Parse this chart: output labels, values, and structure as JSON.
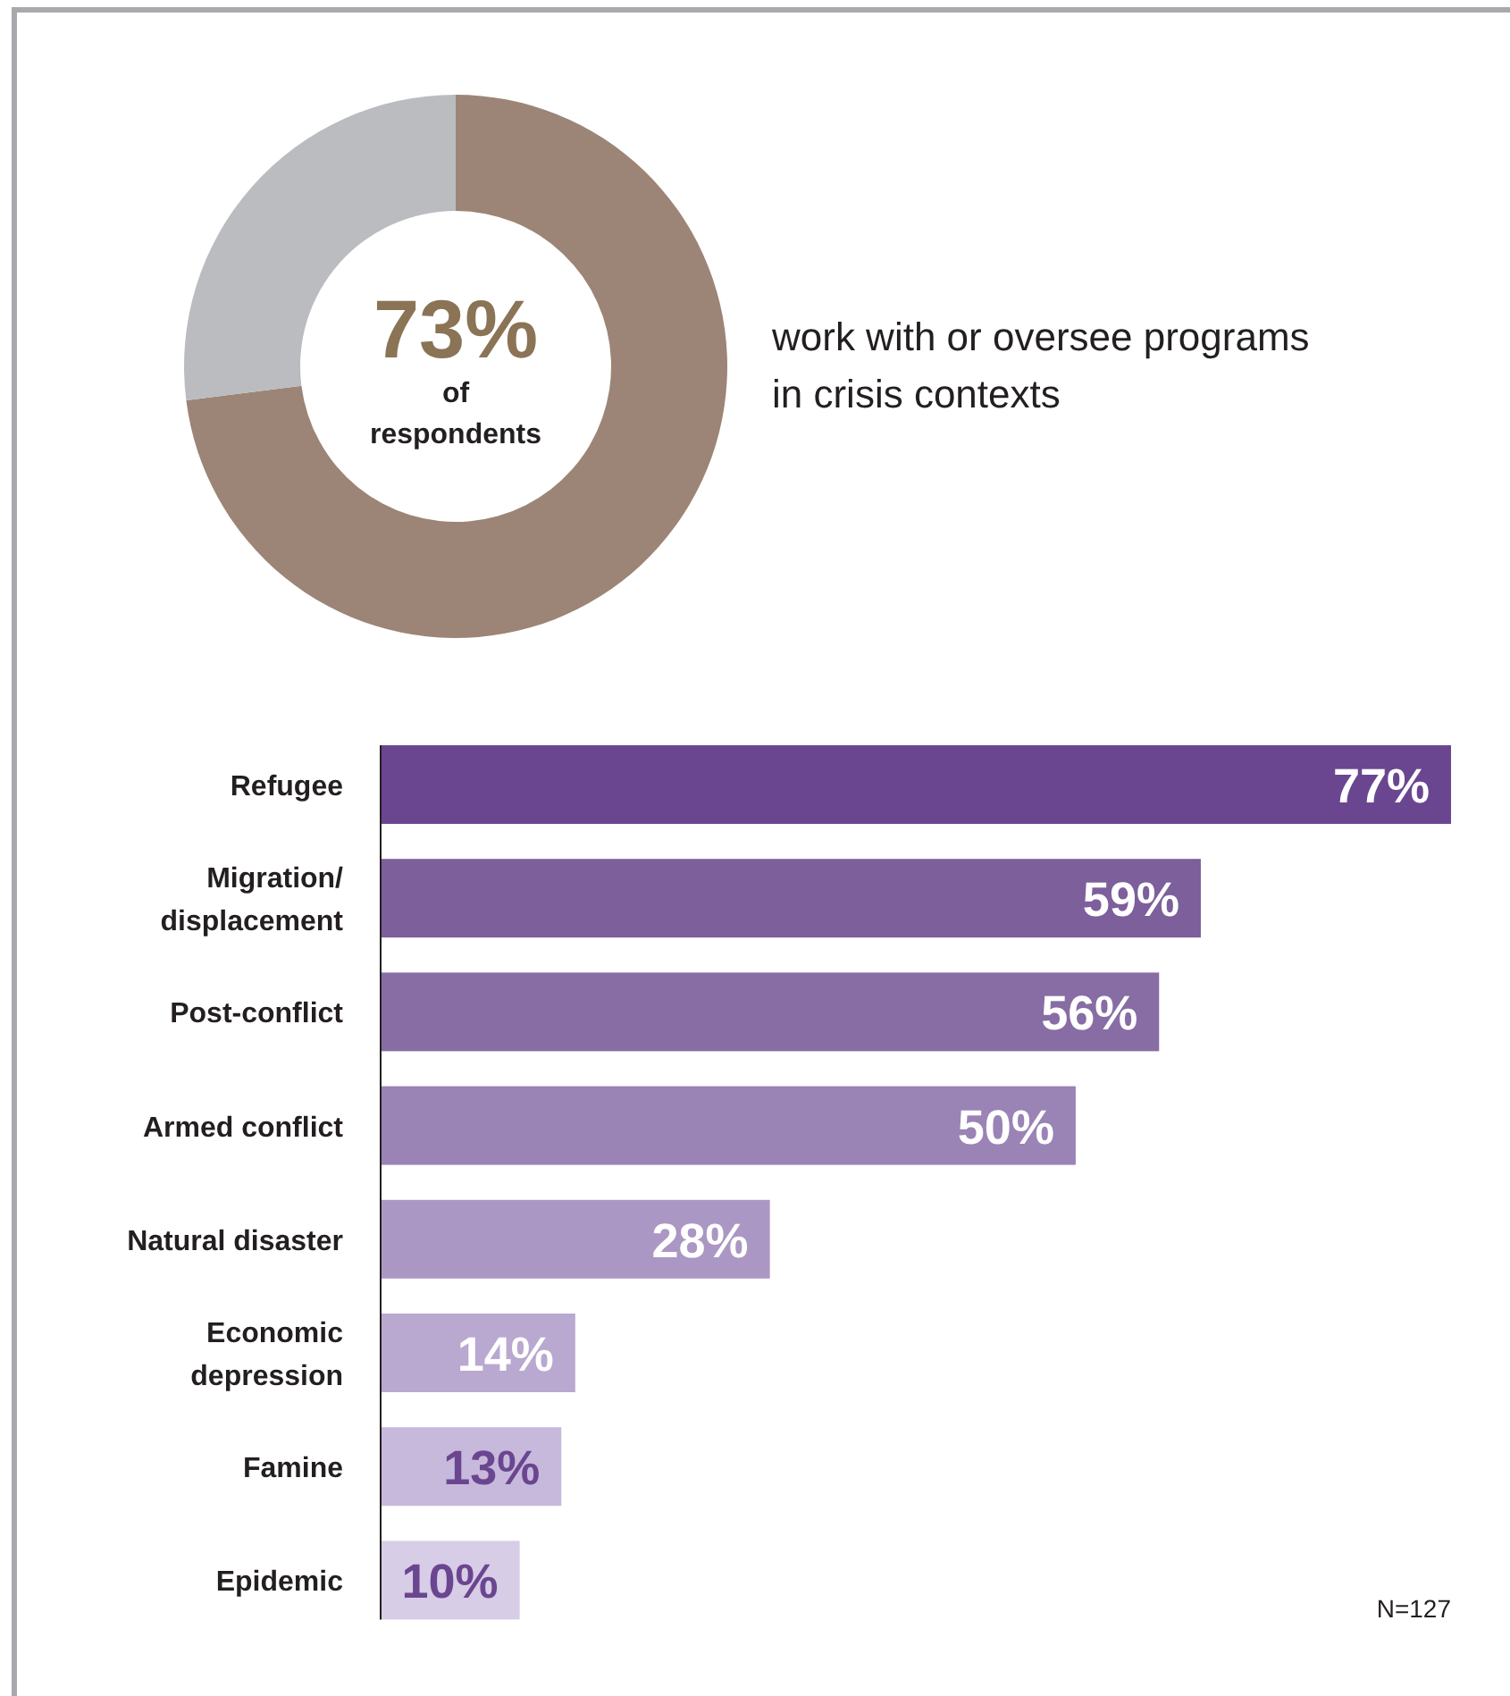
{
  "chart_data": [
    {
      "type": "donut",
      "categories": [
        null,
        null
      ],
      "values": [
        73,
        27
      ],
      "colors": [
        "#9c8576",
        "#bbbcbf"
      ],
      "value_labels": [
        "73%",
        null
      ],
      "annotations": [
        "of respondents",
        "work with or oversee programs in crisis contexts"
      ]
    },
    {
      "type": "bar",
      "orientation": "horizontal",
      "categories": [
        "Refugee",
        "Migration/ displacement",
        "Post-conflict",
        "Armed conflict",
        "Natural disaster",
        "Economic depression",
        "Famine",
        "Epidemic"
      ],
      "values": [
        77,
        59,
        56,
        50,
        28,
        14,
        13,
        10
      ],
      "colors": [
        "#6b4690",
        "#7c5f9b",
        "#876da4",
        "#9a83b5",
        "#ab97c3",
        "#b9a8cf",
        "#c7b9db",
        "#d7cde6"
      ],
      "value_labels": [
        "77%",
        "59%",
        "56%",
        "50%",
        "28%",
        "14%",
        "13%",
        "10%"
      ],
      "annotations": [
        "N=127"
      ]
    }
  ]
}
